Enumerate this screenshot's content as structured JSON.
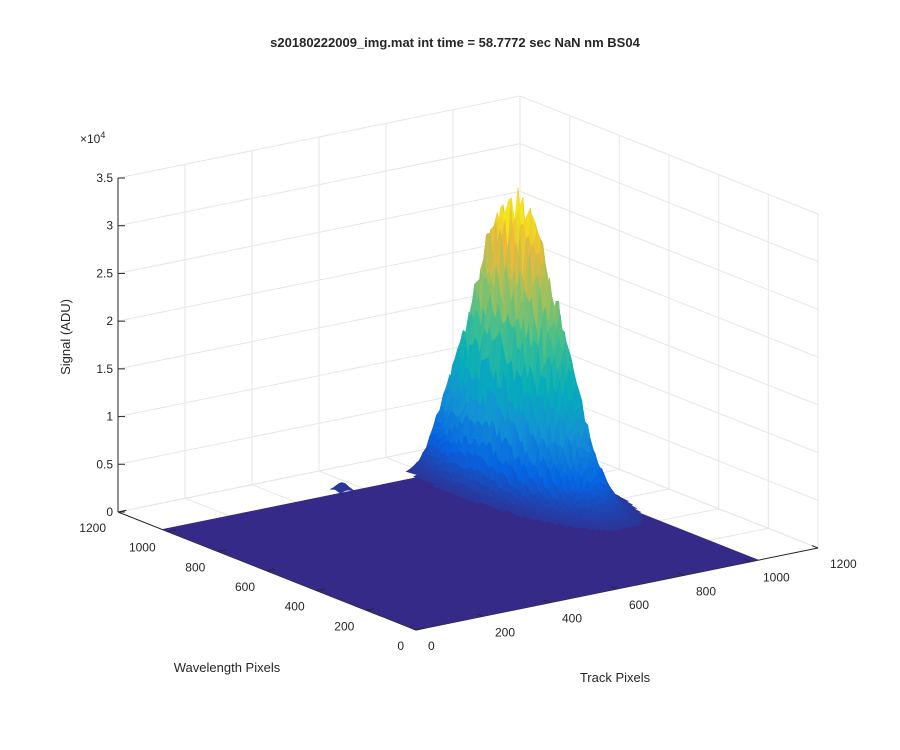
{
  "chart_data": {
    "type": "surface",
    "title": "s20180222009_img.mat int time = 58.7772 sec  NaN nm BS04",
    "xlabel": "Track Pixels",
    "ylabel": "Wavelength Pixels",
    "zlabel": "Signal (ADU)",
    "z_exponent_label": "×10",
    "z_exponent_power": "4",
    "xlim": [
      0,
      1200
    ],
    "ylim": [
      0,
      1200
    ],
    "zlim": [
      0,
      3.5
    ],
    "z_scale": 10000,
    "x_ticks": [
      "0",
      "200",
      "400",
      "600",
      "800",
      "1000",
      "1200"
    ],
    "y_ticks": [
      "0",
      "200",
      "400",
      "600",
      "800",
      "1000",
      "1200"
    ],
    "z_ticks": [
      "0",
      "0.5",
      "1",
      "1.5",
      "2",
      "2.5",
      "3",
      "3.5"
    ],
    "grid": true,
    "colormap": "parula",
    "data_extent": {
      "x": [
        0,
        1024
      ],
      "y": [
        0,
        1024
      ]
    },
    "peaks": [
      {
        "x_center": 880,
        "y_center": 800,
        "x_sigma": 55,
        "y_sigma": 150,
        "amplitude": 29500
      },
      {
        "x_center": 880,
        "y_center": 600,
        "x_sigma": 40,
        "y_sigma": 90,
        "amplitude": 5000
      },
      {
        "x_center": 520,
        "y_center": 1000,
        "x_sigma": 12,
        "y_sigma": 12,
        "amplitude": 900
      }
    ],
    "peak_value": 30500,
    "background_value": 600
  }
}
